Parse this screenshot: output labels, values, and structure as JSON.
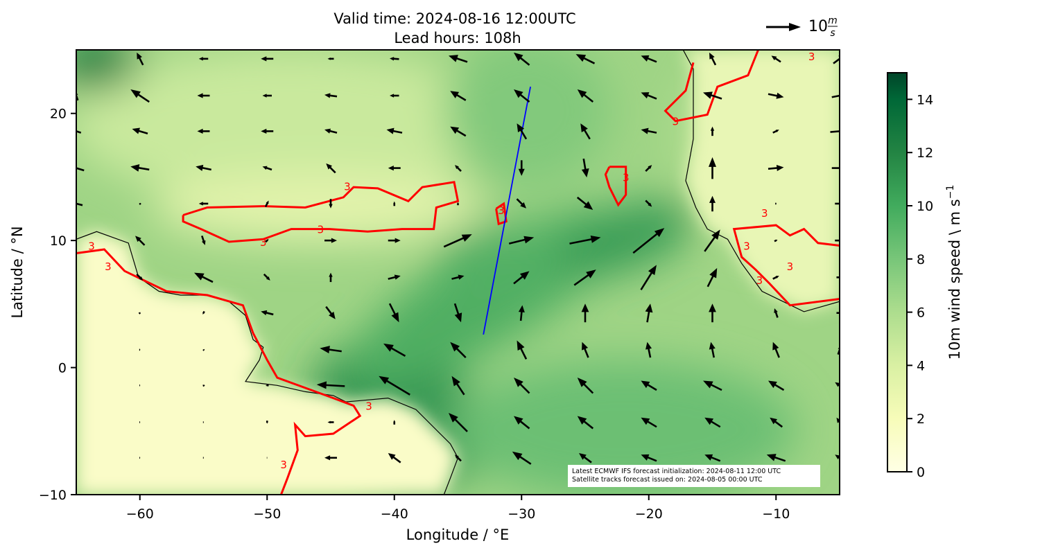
{
  "title": {
    "line1": "Valid time: 2024-08-16 12:00UTC",
    "line2": "Lead hours: 108h"
  },
  "quiver_key": {
    "value": "10",
    "unit_num": "m",
    "unit_den": "s",
    "reference_speed": 10
  },
  "axes": {
    "xlabel": "Longitude / °E",
    "ylabel": "Latitude / °N",
    "xlim": [
      -65,
      -5
    ],
    "ylim": [
      -10,
      25
    ],
    "xticks": [
      -60,
      -50,
      -40,
      -30,
      -20,
      -10
    ],
    "xtick_labels": [
      "−60",
      "−50",
      "−40",
      "−30",
      "−20",
      "−10"
    ],
    "yticks": [
      -10,
      0,
      10,
      20
    ],
    "ytick_labels": [
      "−10",
      "0",
      "10",
      "20"
    ]
  },
  "colorbar": {
    "label": "10m wind speed \\ m s",
    "label_sup": "−1",
    "range": [
      0,
      15
    ],
    "ticks": [
      0,
      2,
      4,
      6,
      8,
      10,
      12,
      14
    ],
    "tick_labels": [
      "0",
      "2",
      "4",
      "6",
      "8",
      "10",
      "12",
      "14"
    ],
    "colormap": "YlGn",
    "colors": [
      "#ffffe5",
      "#f7fcb9",
      "#d9f0a3",
      "#addd8e",
      "#78c679",
      "#41ab5d",
      "#238443",
      "#006837",
      "#004529"
    ]
  },
  "annotation": {
    "line1": "Latest ECMWF IFS forecast initialization: 2024-08-11 12:00 UTC",
    "line2": "Satellite tracks forecast issued on: 2024-08-05 00:00 UTC"
  },
  "colors": {
    "contour": "#ff0000",
    "track": "#0000ff",
    "coast": "#000000",
    "arrows": "#000000"
  },
  "map_data": {
    "contour_level": "3",
    "contour_labels": [
      [
        -45.8,
        10.9
      ],
      [
        -50.3,
        9.9
      ],
      [
        -62.5,
        8.0
      ],
      [
        -63.8,
        9.6
      ],
      [
        -43.7,
        14.3
      ],
      [
        -31.6,
        12.4
      ],
      [
        -17.9,
        19.4
      ],
      [
        -21.8,
        15.0
      ],
      [
        -10.9,
        12.2
      ],
      [
        -12.3,
        9.6
      ],
      [
        -8.9,
        8.0
      ],
      [
        -11.3,
        6.9
      ],
      [
        -7.2,
        24.5
      ],
      [
        -48.7,
        -7.6
      ],
      [
        -42.0,
        -3.0
      ]
    ],
    "contours": [
      [
        [
          -56.6,
          12.0
        ],
        [
          -54.7,
          12.6
        ],
        [
          -50.3,
          12.7
        ],
        [
          -47.0,
          12.6
        ],
        [
          -44.0,
          13.4
        ],
        [
          -43.2,
          14.2
        ],
        [
          -41.3,
          14.1
        ],
        [
          -38.9,
          13.1
        ],
        [
          -37.8,
          14.2
        ],
        [
          -35.3,
          14.6
        ],
        [
          -35.0,
          13.1
        ],
        [
          -36.7,
          12.6
        ],
        [
          -36.9,
          10.9
        ],
        [
          -39.4,
          10.9
        ],
        [
          -42.1,
          10.7
        ],
        [
          -45.1,
          10.9
        ],
        [
          -48.1,
          10.9
        ],
        [
          -50.3,
          10.1
        ],
        [
          -53.0,
          9.9
        ],
        [
          -55.2,
          10.9
        ],
        [
          -56.6,
          11.5
        ],
        [
          -56.6,
          12.0
        ]
      ],
      [
        [
          -65,
          9.0
        ],
        [
          -62.8,
          9.3
        ],
        [
          -61.2,
          7.6
        ],
        [
          -57.9,
          6.0
        ],
        [
          -54.7,
          5.7
        ],
        [
          -51.9,
          4.9
        ],
        [
          -51.1,
          2.7
        ],
        [
          -50.0,
          0.6
        ],
        [
          -49.2,
          -0.8
        ],
        [
          -47.0,
          -1.6
        ],
        [
          -44.8,
          -2.4
        ],
        [
          -43.2,
          -3.0
        ],
        [
          -42.7,
          -3.8
        ],
        [
          -44.8,
          -5.2
        ],
        [
          -47.0,
          -5.4
        ],
        [
          -47.8,
          -4.5
        ],
        [
          -47.6,
          -6.5
        ],
        [
          -48.4,
          -8.7
        ],
        [
          -48.9,
          -10
        ]
      ],
      [
        [
          -16.5,
          24.0
        ],
        [
          -17.1,
          21.8
        ],
        [
          -18.7,
          20.2
        ],
        [
          -17.9,
          19.4
        ],
        [
          -15.4,
          19.9
        ],
        [
          -14.6,
          22.1
        ],
        [
          -12.2,
          23.0
        ],
        [
          -11.4,
          25
        ]
      ],
      [
        [
          -5,
          9.6
        ],
        [
          -6.7,
          9.8
        ],
        [
          -7.8,
          10.9
        ],
        [
          -8.9,
          10.4
        ],
        [
          -10.0,
          11.2
        ],
        [
          -13.3,
          10.9
        ],
        [
          -12.7,
          8.7
        ],
        [
          -11.6,
          7.7
        ],
        [
          -10.5,
          6.6
        ],
        [
          -8.9,
          4.9
        ],
        [
          -5,
          5.4
        ]
      ],
      [
        [
          -23.1,
          15.8
        ],
        [
          -21.8,
          15.8
        ],
        [
          -21.8,
          13.6
        ],
        [
          -22.4,
          12.8
        ],
        [
          -23.1,
          14.2
        ],
        [
          -23.4,
          15.2
        ],
        [
          -23.1,
          15.8
        ]
      ],
      [
        [
          -32.0,
          12.5
        ],
        [
          -31.4,
          12.9
        ],
        [
          -31.2,
          11.5
        ],
        [
          -31.8,
          11.3
        ],
        [
          -32.0,
          12.5
        ]
      ]
    ],
    "coast_south_america": [
      [
        -65,
        10.1
      ],
      [
        -63.4,
        10.7
      ],
      [
        -60.9,
        9.8
      ],
      [
        -60.1,
        7.1
      ],
      [
        -58.5,
        6.0
      ],
      [
        -56.8,
        5.7
      ],
      [
        -54.7,
        5.7
      ],
      [
        -53.0,
        5.2
      ],
      [
        -51.7,
        4.1
      ],
      [
        -51.1,
        2.2
      ],
      [
        -50.3,
        1.6
      ],
      [
        -50.6,
        0.6
      ],
      [
        -51.7,
        -1.1
      ],
      [
        -49.2,
        -1.4
      ],
      [
        -47.0,
        -1.9
      ],
      [
        -44.8,
        -2.2
      ],
      [
        -43.8,
        -2.7
      ],
      [
        -42.7,
        -2.6
      ],
      [
        -40.5,
        -2.4
      ],
      [
        -38.3,
        -3.3
      ],
      [
        -36.7,
        -4.9
      ],
      [
        -35.6,
        -6.0
      ],
      [
        -35.0,
        -7.1
      ],
      [
        -35.6,
        -8.7
      ],
      [
        -36.1,
        -10.0
      ]
    ],
    "coast_africa": [
      [
        -17.3,
        25
      ],
      [
        -16.5,
        23.5
      ],
      [
        -16.5,
        18.0
      ],
      [
        -17.1,
        14.7
      ],
      [
        -16.3,
        12.6
      ],
      [
        -15.4,
        10.9
      ],
      [
        -13.8,
        10.1
      ],
      [
        -12.7,
        8.2
      ],
      [
        -11.1,
        6.0
      ],
      [
        -7.8,
        4.4
      ],
      [
        -5.0,
        5.2
      ]
    ],
    "satellite_track": [
      [
        -33.0,
        2.6
      ],
      [
        -29.3,
        22.1
      ]
    ],
    "wind_lons": [
      -65,
      -60,
      -55,
      -50,
      -45,
      -40,
      -35,
      -30,
      -25,
      -20,
      -15,
      -10,
      -5
    ],
    "wind_lats": [
      24.3,
      21.4,
      18.6,
      15.7,
      12.9,
      10.0,
      7.1,
      4.3,
      1.4,
      -1.4,
      -4.3,
      -7.1
    ],
    "wind_uv": [
      [
        null,
        [
          -2,
          4
        ],
        [
          -3,
          0
        ],
        [
          -4,
          0
        ],
        [
          -2,
          0
        ],
        [
          -3,
          0.2
        ],
        [
          -6,
          2
        ],
        [
          -5,
          4
        ],
        [
          -6,
          3
        ],
        [
          -5,
          2
        ],
        [
          -2,
          4
        ],
        [
          -3,
          2
        ],
        [
          4,
          3
        ]
      ],
      [
        [
          -1,
          3
        ],
        [
          -6,
          4
        ],
        [
          -4,
          0
        ],
        [
          -3,
          0
        ],
        [
          -4,
          0.5
        ],
        [
          -3,
          0
        ],
        [
          -5,
          3
        ],
        [
          -5,
          4
        ],
        [
          -5,
          4
        ],
        [
          -5,
          2
        ],
        [
          -6,
          2
        ],
        [
          5,
          -1
        ],
        [
          5,
          1
        ]
      ],
      [
        [
          -3,
          1
        ],
        [
          -5,
          1.5
        ],
        [
          -4,
          0
        ],
        [
          -4,
          0
        ],
        [
          -4,
          1
        ],
        [
          -5,
          1
        ],
        [
          -5,
          3
        ],
        [
          -3,
          5
        ],
        [
          -3,
          5
        ],
        [
          -5,
          1
        ],
        [
          0,
          3
        ],
        [
          2,
          1
        ],
        [
          6,
          0.5
        ]
      ],
      [
        [
          -5,
          1.5
        ],
        [
          -6,
          1
        ],
        [
          -5,
          1
        ],
        [
          -3,
          1
        ],
        [
          -3,
          3
        ],
        [
          -4,
          0
        ],
        [
          -2,
          2
        ],
        [
          0,
          -5
        ],
        [
          1,
          -6
        ],
        [
          2,
          2
        ],
        [
          0,
          7
        ],
        [
          5,
          0.5
        ],
        [
          5,
          0
        ]
      ],
      [
        [
          -4,
          1
        ],
        [
          -0.5,
          0.5
        ],
        [
          -3,
          0
        ],
        [
          1,
          2
        ],
        [
          0,
          -3
        ],
        [
          0,
          1.5
        ],
        [
          0,
          1
        ],
        [
          3,
          -3
        ],
        [
          5,
          -4
        ],
        [
          2,
          -2
        ],
        [
          0,
          5
        ],
        [
          0.5,
          0
        ],
        [
          3,
          0
        ]
      ],
      [
        [
          0.5,
          0.5
        ],
        [
          -3,
          3
        ],
        [
          1,
          -3
        ],
        [
          1,
          1
        ],
        [
          4,
          0
        ],
        [
          4,
          0
        ],
        [
          9,
          4
        ],
        [
          8,
          2
        ],
        [
          10,
          2
        ],
        [
          10,
          8
        ],
        [
          5,
          7
        ],
        [
          1,
          0.5
        ],
        [
          3,
          0
        ]
      ],
      [
        [
          0.3,
          0.3
        ],
        [
          2,
          -2
        ],
        [
          -6,
          3
        ],
        [
          2,
          -2
        ],
        [
          0,
          3
        ],
        [
          4,
          1
        ],
        [
          4,
          1
        ],
        [
          5,
          4
        ],
        [
          7,
          5
        ],
        [
          5,
          8
        ],
        [
          3,
          6
        ],
        [
          2,
          1
        ],
        [
          2,
          0
        ]
      ],
      [
        [
          0.5,
          -0.5
        ],
        [
          0.5,
          0.5
        ],
        [
          -0.5,
          -1
        ],
        [
          -4,
          1
        ],
        [
          3,
          -4
        ],
        [
          3,
          -6
        ],
        [
          2,
          -6
        ],
        [
          0.5,
          5
        ],
        [
          0,
          6
        ],
        [
          1,
          6
        ],
        [
          0,
          6
        ],
        [
          -1,
          3
        ],
        [
          2,
          0
        ]
      ],
      [
        [
          0.3,
          0.3
        ],
        [
          0.4,
          0
        ],
        [
          -0.4,
          0.4
        ],
        [
          null
        ],
        [
          -7,
          1
        ],
        [
          -7,
          4
        ],
        [
          -5,
          5
        ],
        [
          -3,
          6
        ],
        [
          -2,
          5
        ],
        [
          -1,
          5
        ],
        [
          -1,
          5
        ],
        [
          -2,
          5
        ],
        [
          1,
          3
        ]
      ],
      [
        [
          0.3,
          0
        ],
        [
          0.3,
          0
        ],
        [
          -0.5,
          0.5
        ],
        [
          -1,
          0
        ],
        [
          -9,
          0.5
        ],
        [
          -10,
          6
        ],
        [
          -4,
          6
        ],
        [
          -5,
          5
        ],
        [
          -5,
          5
        ],
        [
          -5,
          3
        ],
        [
          -6,
          3
        ],
        [
          -5,
          3
        ],
        [
          -3,
          2
        ]
      ],
      [
        [
          0.3,
          0
        ],
        [
          0.3,
          0
        ],
        [
          0.3,
          0
        ],
        [
          0,
          -1
        ],
        [
          -2,
          0
        ],
        [
          0,
          1.5
        ],
        [
          -6,
          6
        ],
        [
          -5,
          4
        ],
        [
          -5,
          4
        ],
        [
          -5,
          3
        ],
        [
          -5,
          3
        ],
        [
          -4,
          3
        ],
        [
          -2,
          3
        ]
      ],
      [
        [
          0.3,
          0
        ],
        [
          0.3,
          0
        ],
        [
          0.3,
          0
        ],
        [
          0.2,
          0
        ],
        [
          -4,
          0
        ],
        [
          -4,
          3
        ],
        [
          -2,
          2
        ],
        [
          -6,
          4
        ],
        [
          -4,
          3
        ],
        [
          -5,
          2
        ],
        [
          -5,
          2
        ],
        [
          -6,
          2
        ],
        [
          -3,
          2
        ]
      ]
    ]
  }
}
